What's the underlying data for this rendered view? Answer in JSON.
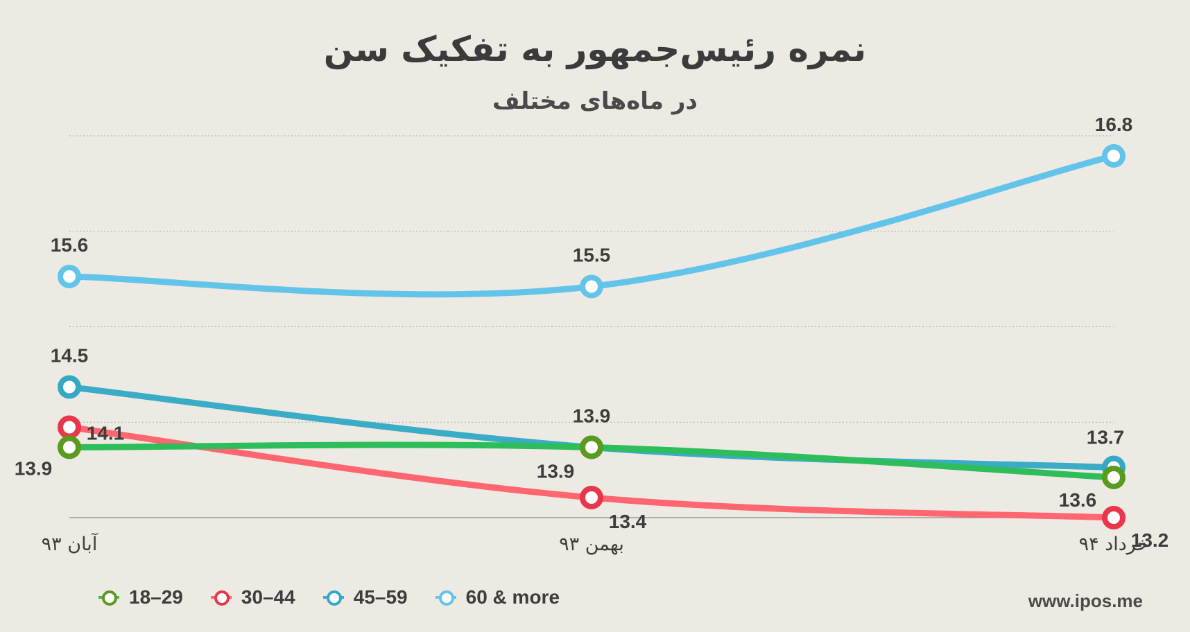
{
  "chart_data": {
    "type": "line",
    "title": "نمره رئیس‌جمهور به تفکیک سن",
    "subtitle": "در ماه‌های مختلف",
    "categories": [
      "آبان ۹۳",
      "بهمن ۹۳",
      "خرداد ۹۴"
    ],
    "ylim": [
      13.2,
      17.0
    ],
    "grid": true,
    "legend_position": "bottom-left",
    "series": [
      {
        "name": "18–29",
        "color": "#2ebd5b",
        "marker_color": "#5a9a1e",
        "values": [
          13.9,
          13.9,
          13.6
        ],
        "labels": [
          "13.9",
          "13.9",
          "13.6"
        ]
      },
      {
        "name": "30–44",
        "color": "#ff6670",
        "marker_color": "#e8364a",
        "values": [
          14.1,
          13.4,
          13.2
        ],
        "labels": [
          "14.1",
          "13.4",
          "13.2"
        ]
      },
      {
        "name": "45–59",
        "color": "#3aacc6",
        "marker_color": "#35a8c5",
        "values": [
          14.5,
          13.9,
          13.7
        ],
        "labels": [
          "14.5",
          "13.9",
          "13.7"
        ]
      },
      {
        "name": "60 & more",
        "color": "#63c4ea",
        "marker_color": "#63c4ea",
        "values": [
          15.6,
          15.5,
          16.8
        ],
        "labels": [
          "15.6",
          "15.5",
          "16.8"
        ]
      }
    ]
  },
  "footer": {
    "source": "www.ipos.me"
  }
}
